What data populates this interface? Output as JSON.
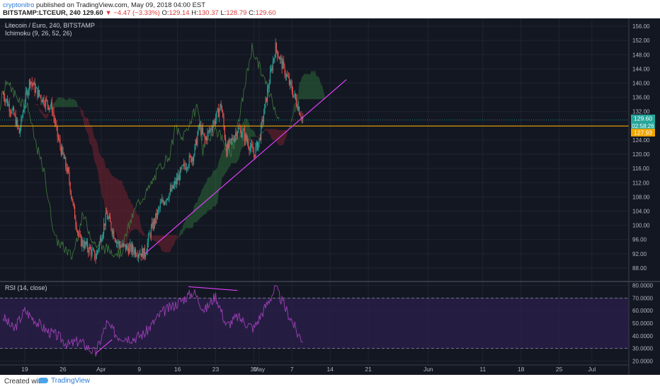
{
  "header": {
    "author": "cryptonitro",
    "published_text": "published on TradingView.com, May 09, 2018 04:00 EST",
    "symbol": "BITSTAMP:LTCEUR, 240",
    "last": "129.60",
    "change": "▼ −4.47 (−3.33%)",
    "open_label": "O:",
    "open": "129.14",
    "high_label": "H:",
    "high": "130.37",
    "low_label": "L:",
    "low": "128.79",
    "close_label": "C:",
    "close": "129.60"
  },
  "pane": {
    "title": "Litecoin / Euro, 240, BITSTAMP",
    "indicator": "Ichimoku (9, 26, 52, 26)",
    "rsi_title": "RSI (14, close)"
  },
  "badges": {
    "price": "129.60",
    "countdown": "02:58:26",
    "level": "127.93"
  },
  "footer": {
    "created_with": "Created with",
    "brand": "TradingView"
  },
  "colors": {
    "background": "#131722",
    "up_candle": "#26a69a",
    "down_candle": "#ef5350",
    "horizontal_line": "#f0a500",
    "trend_line": "#e040fb",
    "rsi_line": "#9c3fb5",
    "rsi_band": "#2a1f4a",
    "cloud_bull": "#2e6b3a",
    "cloud_bear": "#7a2330"
  },
  "chart_data": [
    {
      "type": "candlestick",
      "title": "Litecoin / Euro, 240, BITSTAMP",
      "y_ticks": [
        "156.00",
        "152.00",
        "148.00",
        "144.00",
        "140.00",
        "136.00",
        "132.00",
        "128.00",
        "124.00",
        "120.00",
        "116.00",
        "112.00",
        "108.00",
        "104.00",
        "100.00",
        "96.00",
        "92.00",
        "88.00"
      ],
      "ylim": [
        86,
        157
      ],
      "x_ticks": [
        "19",
        "26",
        "Apr",
        "9",
        "16",
        "23",
        "30",
        "May",
        "7",
        "14",
        "21",
        "Jun",
        "11",
        "18",
        "25",
        "Jul"
      ],
      "close_path": [
        {
          "date": "2018-03-15",
          "close": 137
        },
        {
          "date": "2018-03-17",
          "close": 131
        },
        {
          "date": "2018-03-18",
          "close": 126
        },
        {
          "date": "2018-03-19",
          "close": 135
        },
        {
          "date": "2018-03-20",
          "close": 141
        },
        {
          "date": "2018-03-21",
          "close": 138
        },
        {
          "date": "2018-03-22",
          "close": 136
        },
        {
          "date": "2018-03-24",
          "close": 133
        },
        {
          "date": "2018-03-25",
          "close": 125
        },
        {
          "date": "2018-03-27",
          "close": 114
        },
        {
          "date": "2018-03-28",
          "close": 104
        },
        {
          "date": "2018-03-29",
          "close": 96
        },
        {
          "date": "2018-03-31",
          "close": 93
        },
        {
          "date": "2018-04-01",
          "close": 91
        },
        {
          "date": "2018-04-03",
          "close": 103
        },
        {
          "date": "2018-04-04",
          "close": 99
        },
        {
          "date": "2018-04-05",
          "close": 95
        },
        {
          "date": "2018-04-06",
          "close": 94
        },
        {
          "date": "2018-04-08",
          "close": 93
        },
        {
          "date": "2018-04-10",
          "close": 92
        },
        {
          "date": "2018-04-11",
          "close": 98
        },
        {
          "date": "2018-04-13",
          "close": 106
        },
        {
          "date": "2018-04-15",
          "close": 110
        },
        {
          "date": "2018-04-17",
          "close": 116
        },
        {
          "date": "2018-04-19",
          "close": 120
        },
        {
          "date": "2018-04-20",
          "close": 128
        },
        {
          "date": "2018-04-21",
          "close": 124
        },
        {
          "date": "2018-04-23",
          "close": 130
        },
        {
          "date": "2018-04-24",
          "close": 134
        },
        {
          "date": "2018-04-25",
          "close": 121
        },
        {
          "date": "2018-04-27",
          "close": 127
        },
        {
          "date": "2018-04-28",
          "close": 126
        },
        {
          "date": "2018-04-30",
          "close": 120
        },
        {
          "date": "2018-05-01",
          "close": 124
        },
        {
          "date": "2018-05-03",
          "close": 142
        },
        {
          "date": "2018-05-04",
          "close": 150
        },
        {
          "date": "2018-05-05",
          "close": 146
        },
        {
          "date": "2018-05-06",
          "close": 142
        },
        {
          "date": "2018-05-07",
          "close": 138
        },
        {
          "date": "2018-05-08",
          "close": 134
        },
        {
          "date": "2018-05-09",
          "close": 129.6
        }
      ],
      "horizontal_line": 127.93,
      "trend_line": [
        {
          "date": "2018-04-10",
          "price": 92
        },
        {
          "date": "2018-05-17",
          "price": 141
        }
      ]
    },
    {
      "type": "line",
      "title": "RSI (14, close)",
      "y_ticks": [
        "80.0000",
        "70.0000",
        "60.0000",
        "50.0000",
        "40.0000",
        "30.0000",
        "20.0000"
      ],
      "ylim": [
        18,
        82
      ],
      "bands": [
        30,
        70
      ],
      "series": [
        {
          "values": [
            {
              "date": "2018-03-15",
              "rsi": 55
            },
            {
              "date": "2018-03-17",
              "rsi": 45
            },
            {
              "date": "2018-03-19",
              "rsi": 60
            },
            {
              "date": "2018-03-21",
              "rsi": 52
            },
            {
              "date": "2018-03-23",
              "rsi": 44
            },
            {
              "date": "2018-03-25",
              "rsi": 40
            },
            {
              "date": "2018-03-27",
              "rsi": 33
            },
            {
              "date": "2018-03-29",
              "rsi": 36
            },
            {
              "date": "2018-04-01",
              "rsi": 26
            },
            {
              "date": "2018-04-03",
              "rsi": 50
            },
            {
              "date": "2018-04-05",
              "rsi": 40
            },
            {
              "date": "2018-04-08",
              "rsi": 38
            },
            {
              "date": "2018-04-10",
              "rsi": 42
            },
            {
              "date": "2018-04-13",
              "rsi": 58
            },
            {
              "date": "2018-04-16",
              "rsi": 66
            },
            {
              "date": "2018-04-19",
              "rsi": 75
            },
            {
              "date": "2018-04-21",
              "rsi": 60
            },
            {
              "date": "2018-04-23",
              "rsi": 72
            },
            {
              "date": "2018-04-25",
              "rsi": 48
            },
            {
              "date": "2018-04-27",
              "rsi": 55
            },
            {
              "date": "2018-04-30",
              "rsi": 46
            },
            {
              "date": "2018-05-02",
              "rsi": 62
            },
            {
              "date": "2018-05-04",
              "rsi": 78
            },
            {
              "date": "2018-05-06",
              "rsi": 60
            },
            {
              "date": "2018-05-07",
              "rsi": 52
            },
            {
              "date": "2018-05-08",
              "rsi": 42
            },
            {
              "date": "2018-05-09",
              "rsi": 37
            }
          ]
        }
      ],
      "divergence_lines": [
        {
          "from": {
            "date": "2018-04-01",
            "rsi": 26
          },
          "to": {
            "date": "2018-04-04",
            "rsi": 37
          }
        },
        {
          "from": {
            "date": "2018-04-18",
            "rsi": 79
          },
          "to": {
            "date": "2018-04-27",
            "rsi": 76
          }
        }
      ]
    }
  ]
}
